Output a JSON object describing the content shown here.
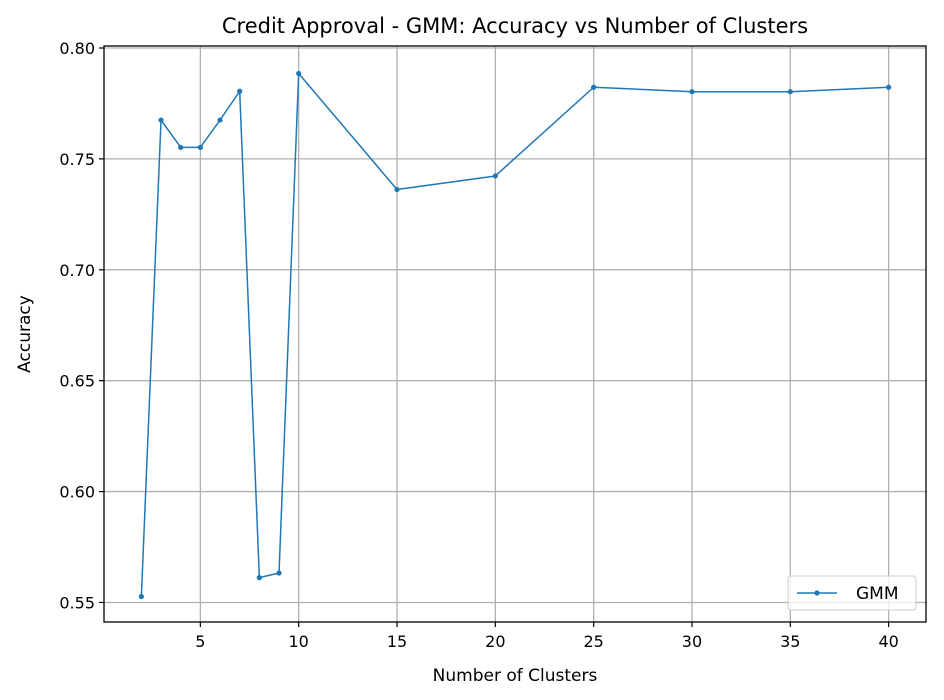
{
  "chart_data": {
    "type": "line",
    "title": "Credit Approval - GMM: Accuracy vs Number of Clusters",
    "xlabel": "Number of Clusters",
    "ylabel": "Accuracy",
    "xlim": [
      0.1,
      41.9
    ],
    "ylim": [
      0.5412,
      0.8009
    ],
    "xticks": [
      5,
      10,
      15,
      20,
      25,
      30,
      35,
      40
    ],
    "xtick_labels": [
      "5",
      "10",
      "15",
      "20",
      "25",
      "30",
      "35",
      "40"
    ],
    "yticks": [
      0.55,
      0.6,
      0.65,
      0.7,
      0.75,
      0.8
    ],
    "ytick_labels": [
      "0.55",
      "0.60",
      "0.65",
      "0.70",
      "0.75",
      "0.80"
    ],
    "grid": true,
    "legend_position": "lower-right",
    "series": [
      {
        "name": "GMM",
        "color": "#1f77b4",
        "marker": "circle",
        "x": [
          2,
          3,
          4,
          5,
          6,
          7,
          8,
          9,
          10,
          15,
          20,
          25,
          30,
          35,
          40
        ],
        "y": [
          0.5527,
          0.7675,
          0.7552,
          0.7552,
          0.7675,
          0.7805,
          0.5612,
          0.5633,
          0.7885,
          0.7362,
          0.7423,
          0.7823,
          0.7803,
          0.7803,
          0.7823
        ]
      }
    ]
  }
}
